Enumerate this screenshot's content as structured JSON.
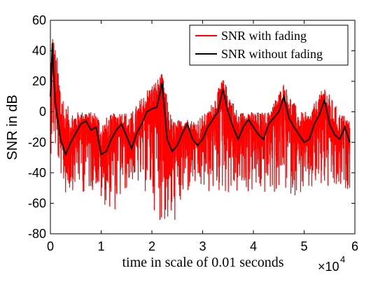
{
  "chart_data": {
    "type": "line",
    "xlabel": "time in scale of 0.01 seconds",
    "x_multiplier_label": "×10",
    "x_multiplier_exponent": "4",
    "ylabel": "SNR in dB",
    "xlim": [
      0,
      6
    ],
    "ylim": [
      -80,
      60
    ],
    "x_ticks": [
      "0",
      "1",
      "2",
      "3",
      "4",
      "5",
      "6"
    ],
    "y_ticks": [
      "60",
      "40",
      "20",
      "0",
      "-20",
      "-40",
      "-60",
      "-80"
    ],
    "legend_position": "top-right",
    "grid": false,
    "series": [
      {
        "name": "SNR with fading",
        "color": "#ff0000",
        "approx_envelope": {
          "x": [
            0.0,
            0.05,
            0.3,
            0.5,
            0.7,
            0.9,
            1.0,
            1.3,
            1.6,
            1.9,
            2.2,
            2.4,
            2.8,
            3.1,
            3.4,
            3.7,
            4.0,
            4.3,
            4.6,
            4.9,
            5.1,
            5.4,
            5.7,
            5.9
          ],
          "upper": [
            30,
            52,
            5,
            0,
            0,
            0,
            -5,
            0,
            0,
            15,
            25,
            -5,
            -5,
            0,
            22,
            0,
            0,
            0,
            19,
            0,
            0,
            17,
            0,
            -5
          ],
          "lower": [
            -30,
            -20,
            -55,
            -50,
            -55,
            -50,
            -60,
            -66,
            -45,
            -55,
            -75,
            -77,
            -50,
            -55,
            -55,
            -55,
            -55,
            -55,
            -55,
            -55,
            -55,
            -55,
            -55,
            -50
          ]
        }
      },
      {
        "name": "SNR without fading",
        "color": "#000000",
        "x": [
          0.0,
          0.04,
          0.06,
          0.1,
          0.2,
          0.3,
          0.4,
          0.5,
          0.6,
          0.7,
          0.8,
          0.9,
          1.0,
          1.1,
          1.2,
          1.3,
          1.4,
          1.5,
          1.6,
          1.7,
          1.8,
          1.9,
          2.0,
          2.1,
          2.2,
          2.3,
          2.4,
          2.5,
          2.6,
          2.7,
          2.8,
          2.9,
          3.0,
          3.1,
          3.2,
          3.3,
          3.4,
          3.5,
          3.6,
          3.7,
          3.8,
          3.9,
          4.0,
          4.1,
          4.2,
          4.3,
          4.4,
          4.5,
          4.6,
          4.7,
          4.8,
          4.9,
          5.0,
          5.1,
          5.2,
          5.3,
          5.4,
          5.5,
          5.6,
          5.7,
          5.8,
          5.9
        ],
        "values": [
          10,
          45,
          25,
          5,
          -18,
          -28,
          -20,
          -14,
          -8,
          -6,
          -12,
          -10,
          -28,
          -26,
          -18,
          -12,
          -8,
          -16,
          -24,
          -14,
          -8,
          0,
          2,
          3,
          19,
          -18,
          -26,
          -22,
          -14,
          -8,
          -18,
          -22,
          -18,
          -10,
          -5,
          0,
          15,
          0,
          -10,
          -18,
          -10,
          -5,
          -10,
          -15,
          -18,
          -8,
          -4,
          0,
          10,
          -4,
          -10,
          -15,
          -20,
          -18,
          -8,
          -2,
          8,
          -8,
          -15,
          -18,
          -10,
          -20
        ]
      }
    ]
  }
}
